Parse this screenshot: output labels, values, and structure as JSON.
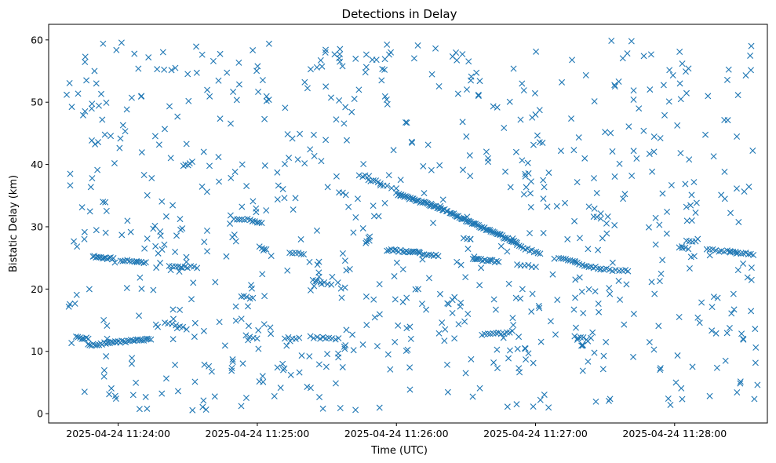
{
  "chart_data": {
    "type": "scatter",
    "title": "Detections in Delay",
    "xlabel": "Time (UTC)",
    "ylabel": "Bistatic Delay (km)",
    "marker": "x",
    "color": "#1f77b4",
    "grid": false,
    "legend": "none",
    "xlim": [
      "2025-04-24 11:23:30",
      "2025-04-24 11:28:40"
    ],
    "ylim": [
      -1.5,
      62.5
    ],
    "xticks": [
      {
        "t": "2025-04-24 11:24:00",
        "label": "2025-04-24 11:24:00"
      },
      {
        "t": "2025-04-24 11:25:00",
        "label": "2025-04-24 11:25:00"
      },
      {
        "t": "2025-04-24 11:26:00",
        "label": "2025-04-24 11:26:00"
      },
      {
        "t": "2025-04-24 11:27:00",
        "label": "2025-04-24 11:27:00"
      },
      {
        "t": "2025-04-24 11:28:00",
        "label": "2025-04-24 11:28:00"
      }
    ],
    "yticks": [
      0,
      10,
      20,
      30,
      40,
      50,
      60
    ],
    "tracks": [
      {
        "start": "2025-04-24 11:23:42",
        "end": "2025-04-24 11:23:47",
        "y_start": 12.2,
        "y_end": 12.0,
        "points": 8
      },
      {
        "start": "2025-04-24 11:23:47",
        "end": "2025-04-24 11:24:14",
        "y_start": 11.0,
        "y_end": 12.0,
        "points": 36
      },
      {
        "start": "2025-04-24 11:23:49",
        "end": "2025-04-24 11:23:58",
        "y_start": 25.2,
        "y_end": 24.9,
        "points": 14
      },
      {
        "start": "2025-04-24 11:24:01",
        "end": "2025-04-24 11:24:08",
        "y_start": 24.6,
        "y_end": 24.4,
        "points": 8
      },
      {
        "start": "2025-04-24 11:24:08",
        "end": "2025-04-24 11:24:12",
        "y_start": 24.3,
        "y_end": 24.2,
        "points": 5
      },
      {
        "start": "2025-04-24 11:24:22",
        "end": "2025-04-24 11:24:34",
        "y_start": 23.6,
        "y_end": 23.5,
        "points": 10
      },
      {
        "start": "2025-04-24 11:24:28",
        "end": "2025-04-24 11:24:32",
        "y_start": 39.8,
        "y_end": 40.3,
        "points": 5
      },
      {
        "start": "2025-04-24 11:24:20",
        "end": "2025-04-24 11:24:28",
        "y_start": 14.5,
        "y_end": 14.0,
        "points": 6
      },
      {
        "start": "2025-04-24 11:24:50",
        "end": "2025-04-24 11:24:58",
        "y_start": 31.3,
        "y_end": 31.0,
        "points": 8
      },
      {
        "start": "2025-04-24 11:24:58",
        "end": "2025-04-24 11:25:02",
        "y_start": 30.9,
        "y_end": 30.6,
        "points": 5
      },
      {
        "start": "2025-04-24 11:25:01",
        "end": "2025-04-24 11:25:04",
        "y_start": 26.7,
        "y_end": 26.5,
        "points": 4
      },
      {
        "start": "2025-04-24 11:25:14",
        "end": "2025-04-24 11:25:20",
        "y_start": 25.9,
        "y_end": 25.6,
        "points": 6
      },
      {
        "start": "2025-04-24 11:24:53",
        "end": "2025-04-24 11:24:58",
        "y_start": 18.8,
        "y_end": 18.5,
        "points": 5
      },
      {
        "start": "2025-04-24 11:24:55",
        "end": "2025-04-24 11:25:00",
        "y_start": 12.4,
        "y_end": 12.0,
        "points": 4
      },
      {
        "start": "2025-04-24 11:25:12",
        "end": "2025-04-24 11:25:18",
        "y_start": 12.2,
        "y_end": 12.0,
        "points": 5
      },
      {
        "start": "2025-04-24 11:25:23",
        "end": "2025-04-24 11:25:35",
        "y_start": 12.3,
        "y_end": 12.0,
        "points": 10
      },
      {
        "start": "2025-04-24 11:25:24",
        "end": "2025-04-24 11:25:32",
        "y_start": 21.5,
        "y_end": 20.8,
        "points": 6
      },
      {
        "start": "2025-04-24 11:25:44",
        "end": "2025-04-24 11:25:48",
        "y_start": 38.3,
        "y_end": 38.0,
        "points": 4
      },
      {
        "start": "2025-04-24 11:25:48",
        "end": "2025-04-24 11:25:53",
        "y_start": 37.6,
        "y_end": 37.0,
        "points": 6
      },
      {
        "start": "2025-04-24 11:25:53",
        "end": "2025-04-24 11:25:56",
        "y_start": 36.7,
        "y_end": 36.5,
        "points": 3
      },
      {
        "start": "2025-04-24 11:25:58",
        "end": "2025-04-24 11:26:00",
        "y_start": 36.2,
        "y_end": 36.1,
        "points": 2
      },
      {
        "start": "2025-04-24 11:25:56",
        "end": "2025-04-24 11:26:10",
        "y_start": 26.3,
        "y_end": 25.8,
        "points": 18
      },
      {
        "start": "2025-04-24 11:26:10",
        "end": "2025-04-24 11:26:18",
        "y_start": 25.7,
        "y_end": 25.4,
        "points": 9
      },
      {
        "start": "2025-04-24 11:26:00",
        "end": "2025-04-24 11:26:22",
        "y_start": 35.3,
        "y_end": 32.6,
        "points": 40
      },
      {
        "start": "2025-04-24 11:26:23",
        "end": "2025-04-24 11:26:52",
        "y_start": 32.2,
        "y_end": 27.4,
        "points": 55
      },
      {
        "start": "2025-04-24 11:26:52",
        "end": "2025-04-24 11:27:02",
        "y_start": 27.0,
        "y_end": 25.6,
        "points": 12
      },
      {
        "start": "2025-04-24 11:26:29",
        "end": "2025-04-24 11:26:32",
        "y_start": 28.3,
        "y_end": 28.0,
        "points": 3
      },
      {
        "start": "2025-04-24 11:26:33",
        "end": "2025-04-24 11:26:44",
        "y_start": 24.8,
        "y_end": 24.4,
        "points": 14
      },
      {
        "start": "2025-04-24 11:26:37",
        "end": "2025-04-24 11:26:50",
        "y_start": 12.6,
        "y_end": 13.1,
        "points": 12
      },
      {
        "start": "2025-04-24 11:26:52",
        "end": "2025-04-24 11:27:00",
        "y_start": 23.8,
        "y_end": 23.6,
        "points": 6
      },
      {
        "start": "2025-04-24 11:27:10",
        "end": "2025-04-24 11:27:17",
        "y_start": 25.0,
        "y_end": 24.5,
        "points": 8
      },
      {
        "start": "2025-04-24 11:27:17",
        "end": "2025-04-24 11:27:28",
        "y_start": 24.2,
        "y_end": 23.3,
        "points": 12
      },
      {
        "start": "2025-04-24 11:27:28",
        "end": "2025-04-24 11:27:40",
        "y_start": 23.2,
        "y_end": 22.9,
        "points": 10
      },
      {
        "start": "2025-04-24 11:27:17",
        "end": "2025-04-24 11:27:22",
        "y_start": 12.3,
        "y_end": 12.0,
        "points": 5
      },
      {
        "start": "2025-04-24 11:27:25",
        "end": "2025-04-24 11:27:28",
        "y_start": 31.7,
        "y_end": 31.2,
        "points": 3
      },
      {
        "start": "2025-04-24 11:28:02",
        "end": "2025-04-24 11:28:06",
        "y_start": 26.8,
        "y_end": 26.5,
        "points": 4
      },
      {
        "start": "2025-04-24 11:28:14",
        "end": "2025-04-24 11:28:24",
        "y_start": 26.3,
        "y_end": 26.0,
        "points": 9
      },
      {
        "start": "2025-04-24 11:28:24",
        "end": "2025-04-24 11:28:34",
        "y_start": 25.9,
        "y_end": 25.6,
        "points": 10
      },
      {
        "start": "2025-04-24 11:28:05",
        "end": "2025-04-24 11:28:09",
        "y_start": 27.7,
        "y_end": 27.5,
        "points": 4
      }
    ],
    "noise": {
      "start": "2025-04-24 11:23:36",
      "end": "2025-04-24 11:28:36",
      "y_range": [
        0.5,
        60
      ],
      "points": 760,
      "seed": 20250424
    }
  }
}
